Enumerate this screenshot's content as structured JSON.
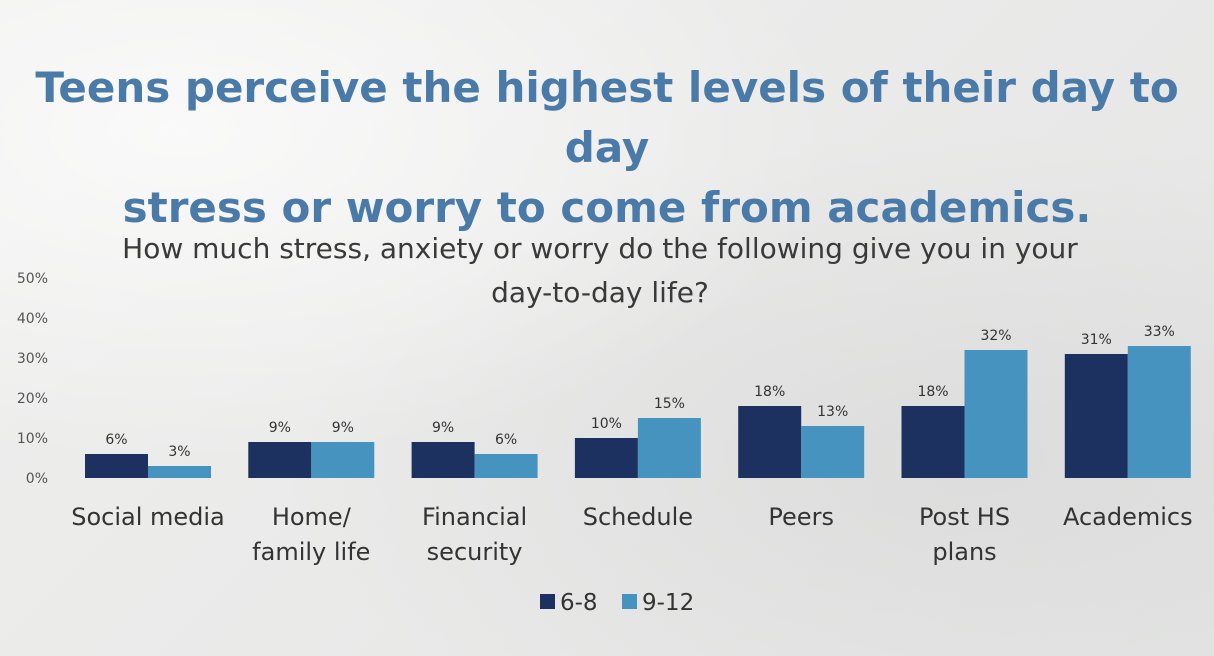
{
  "headline": {
    "line1": "Teens perceive the highest levels of their day to day",
    "line2": "stress or worry to come from academics."
  },
  "colors": {
    "grade_6_8": "#1c3160",
    "grade_9_12": "#4793bf",
    "headline": "#4a7aa8"
  },
  "chart_data": {
    "type": "bar",
    "title_lines": [
      "How much stress, anxiety or worry do the following give you in your",
      "day-to-day life?"
    ],
    "categories": [
      [
        "Social media"
      ],
      [
        "Home/",
        "family life"
      ],
      [
        "Financial",
        "security"
      ],
      [
        "Schedule"
      ],
      [
        "Peers"
      ],
      [
        "Post HS",
        "plans"
      ],
      [
        "Academics"
      ]
    ],
    "series": [
      {
        "name": "6-8",
        "values": [
          6,
          9,
          9,
          10,
          18,
          18,
          31
        ],
        "labels": [
          "6%",
          "9%",
          "9%",
          "10%",
          "18%",
          "18%",
          "31%"
        ]
      },
      {
        "name": "9-12",
        "values": [
          3,
          9,
          6,
          15,
          13,
          32,
          33
        ],
        "labels": [
          "3%",
          "9%",
          "6%",
          "15%",
          "13%",
          "32%",
          "33%"
        ]
      }
    ],
    "yticks": [
      "0%",
      "10%",
      "20%",
      "30%",
      "40%",
      "50%"
    ],
    "ylim": [
      0,
      50
    ],
    "xlabel": "",
    "ylabel": "",
    "legend": "bottom-center"
  }
}
